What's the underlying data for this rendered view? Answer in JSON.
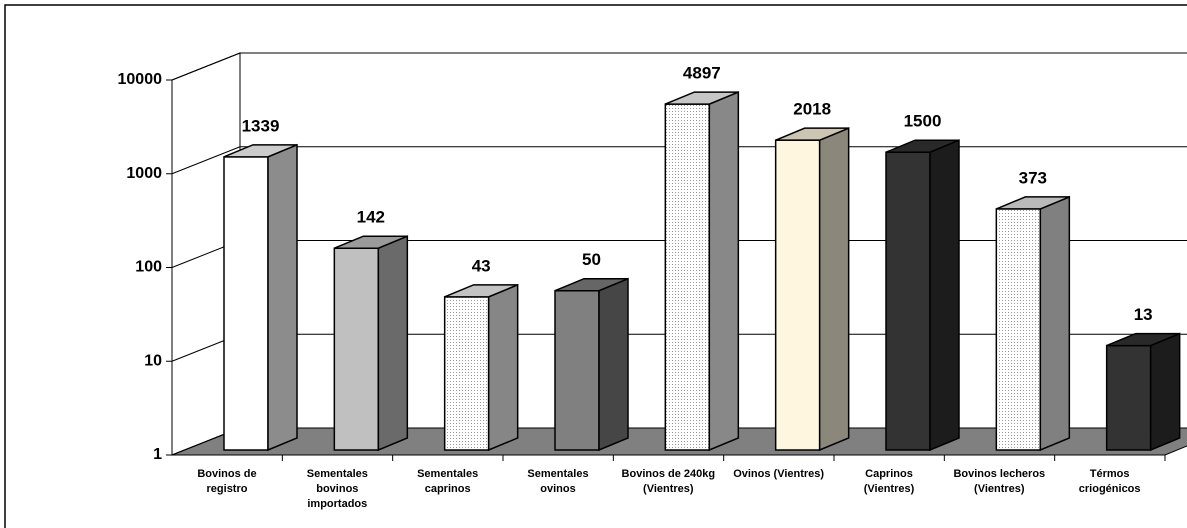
{
  "chart_data": {
    "type": "bar3d",
    "categories": [
      "Bovinos de\nregistro",
      "Sementales\nbovinos\nimportados",
      "Sementales\ncaprinos",
      "Sementales\novinos",
      "Bovinos de 240kg\n(Vientres)",
      "Ovinos (Vientres)",
      "Caprinos\n(Vientres)",
      "Bovinos lecheros\n(Vientres)",
      "Térmos\ncriogénicos"
    ],
    "values": [
      1339,
      142,
      43,
      50,
      4897,
      2018,
      1500,
      373,
      13
    ],
    "colors": [
      "#ffffff",
      "#c0c0c0",
      "#f4f4f4",
      "#808080",
      "#f8f8f8",
      "#fff6e0",
      "#333333",
      "#e8e8e8",
      "#333333"
    ],
    "ylim": [
      1,
      10000
    ],
    "yticks": [
      1,
      10,
      100,
      1000,
      10000
    ],
    "log_scale": true,
    "grid": true
  }
}
